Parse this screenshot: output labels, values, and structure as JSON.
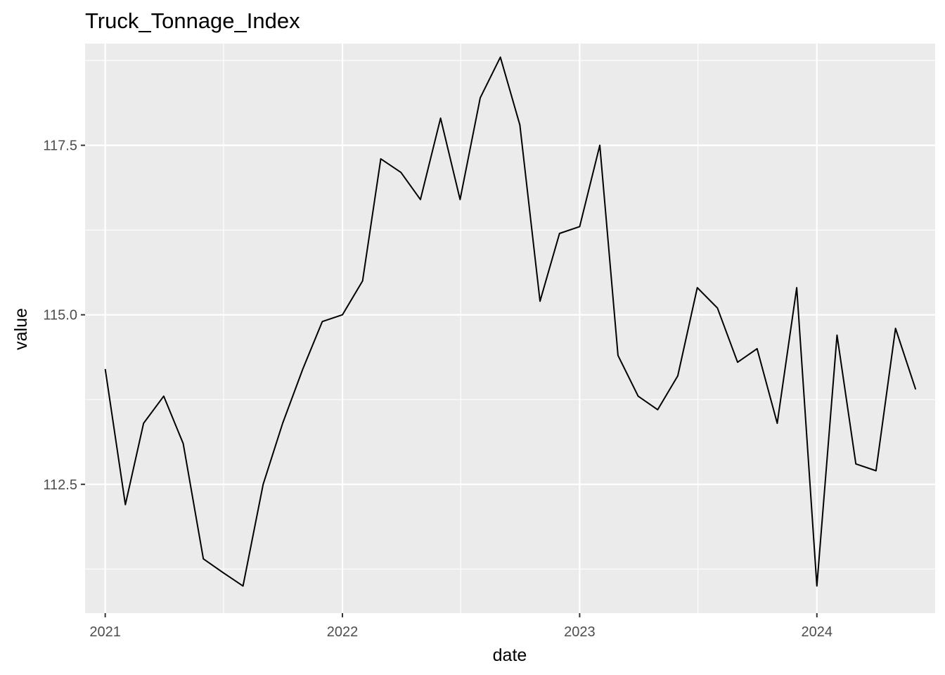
{
  "chart_data": {
    "type": "line",
    "title": "Truck_Tonnage_Index",
    "xlabel": "date",
    "ylabel": "value",
    "x_ticks": [
      "2021",
      "2022",
      "2023",
      "2024"
    ],
    "y_ticks": [
      "112.5",
      "115.0",
      "117.5"
    ],
    "x_range": [
      "2020-12-01",
      "2024-07-01"
    ],
    "ylim": [
      110.6,
      119.0
    ],
    "grid": true,
    "background": "#EBEBEB",
    "grid_color": "#FFFFFF",
    "line_color": "#000000",
    "series": [
      {
        "x": [
          "2021-01-01",
          "2021-02-01",
          "2021-03-01",
          "2021-04-01",
          "2021-05-01",
          "2021-06-01",
          "2021-07-01",
          "2021-08-01",
          "2021-09-01",
          "2021-10-01",
          "2021-11-01",
          "2021-12-01",
          "2022-01-01",
          "2022-02-01",
          "2022-03-01",
          "2022-04-01",
          "2022-05-01",
          "2022-06-01",
          "2022-07-01",
          "2022-08-01",
          "2022-09-01",
          "2022-10-01",
          "2022-11-01",
          "2022-12-01",
          "2023-01-01",
          "2023-02-01",
          "2023-03-01",
          "2023-04-01",
          "2023-05-01",
          "2023-06-01",
          "2023-07-01",
          "2023-08-01",
          "2023-09-01",
          "2023-10-01",
          "2023-11-01",
          "2023-12-01",
          "2024-01-01",
          "2024-02-01",
          "2024-03-01",
          "2024-04-01",
          "2024-05-01",
          "2024-06-01"
        ],
        "values": [
          114.2,
          112.2,
          113.4,
          113.8,
          113.1,
          111.4,
          111.2,
          111.0,
          112.5,
          113.4,
          114.2,
          114.9,
          115.0,
          115.5,
          117.3,
          117.1,
          116.7,
          117.9,
          116.7,
          118.2,
          118.8,
          117.8,
          115.2,
          116.2,
          116.3,
          117.5,
          114.4,
          113.8,
          113.6,
          114.1,
          115.4,
          115.1,
          114.3,
          114.5,
          113.4,
          115.4,
          111.0,
          114.7,
          112.8,
          112.7,
          114.8,
          113.9
        ]
      }
    ]
  }
}
